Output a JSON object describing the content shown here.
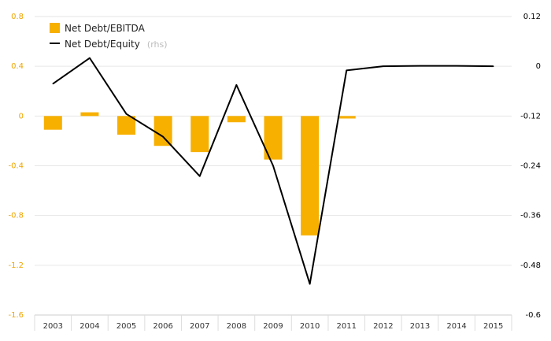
{
  "chart_data": {
    "type": "bar",
    "categories": [
      "2003",
      "2004",
      "2005",
      "2006",
      "2007",
      "2008",
      "2009",
      "2010",
      "2011",
      "2012",
      "2013",
      "2014",
      "2015"
    ],
    "series": [
      {
        "name": "Net Debt/EBITDA",
        "type": "bar",
        "axis": "left",
        "color": "#f7b000",
        "values": [
          -0.11,
          0.03,
          -0.15,
          -0.24,
          -0.29,
          -0.05,
          -0.35,
          -0.96,
          -0.02,
          null,
          null,
          null,
          null
        ]
      },
      {
        "name": "Net Debt/Equity",
        "legend_suffix": "(rhs)",
        "type": "line",
        "axis": "right",
        "color": "#000000",
        "values": [
          -0.042,
          0.02,
          -0.115,
          -0.17,
          -0.265,
          -0.045,
          -0.24,
          -0.525,
          -0.01,
          0.0,
          0.001,
          0.001,
          0.0
        ]
      }
    ],
    "y_left": {
      "ticks": [
        "0.8",
        "0.4",
        "0",
        "-0.4",
        "-0.8",
        "-1.2",
        "-1.6"
      ],
      "ylim": [
        -1.6,
        0.8
      ]
    },
    "y_right": {
      "ticks": [
        "0.12",
        "0",
        "-0.12",
        "-0.24",
        "-0.36",
        "-0.48",
        "-0.6"
      ],
      "ylim": [
        -0.6,
        0.12
      ]
    },
    "grid": true,
    "legend_position": "top-left",
    "colors": {
      "bar": "#f7b000",
      "line": "#000000",
      "left_tick": "#f0a500",
      "grid": "#e6e6e6"
    }
  }
}
